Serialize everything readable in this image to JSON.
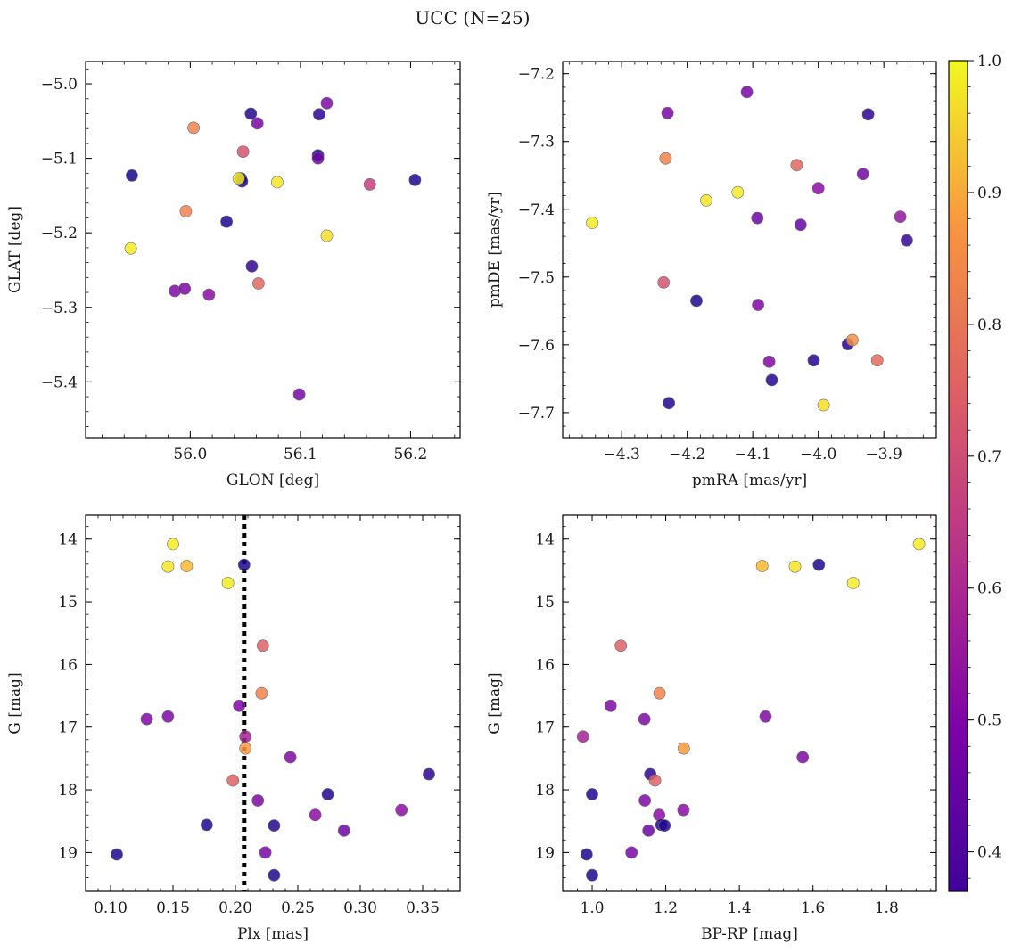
{
  "figure": {
    "title": "UCC (N=25)"
  },
  "colorbar": {
    "colormap": "plasma",
    "range": [
      0.37,
      1.0
    ],
    "ticks": [
      0.4,
      0.5,
      0.6,
      0.7,
      0.8,
      0.9,
      1.0
    ],
    "tick_labels": [
      "0.4",
      "0.5",
      "0.6",
      "0.7",
      "0.8",
      "0.9",
      "1.0"
    ]
  },
  "colors": {
    "marker_edge": "#6e6e6e",
    "vline": "#000000"
  },
  "chart_data": [
    {
      "type": "scatter",
      "xlabel": "GLON [deg]",
      "ylabel": "GLAT [deg]",
      "xlim": [
        55.905,
        56.245
      ],
      "ylim": [
        -5.475,
        -4.97
      ],
      "invert_y": false,
      "xticks": [
        56.0,
        56.1,
        56.2
      ],
      "xtick_labels": [
        "56.0",
        "56.1",
        "56.2"
      ],
      "yticks": [
        -5.0,
        -5.1,
        -5.2,
        -5.3,
        -5.4
      ],
      "ytick_labels": [
        "−5.0",
        "−5.1",
        "−5.2",
        "−5.3",
        "−5.4"
      ],
      "points": [
        {
          "x": 55.947,
          "y": -5.123,
          "c": 0.38
        },
        {
          "x": 55.946,
          "y": -5.221,
          "c": 0.98
        },
        {
          "x": 56.003,
          "y": -5.059,
          "c": 0.81
        },
        {
          "x": 55.996,
          "y": -5.171,
          "c": 0.81
        },
        {
          "x": 55.986,
          "y": -5.278,
          "c": 0.53
        },
        {
          "x": 55.995,
          "y": -5.275,
          "c": 0.53
        },
        {
          "x": 56.017,
          "y": -5.283,
          "c": 0.55
        },
        {
          "x": 56.055,
          "y": -5.04,
          "c": 0.4
        },
        {
          "x": 56.061,
          "y": -5.053,
          "c": 0.52
        },
        {
          "x": 56.048,
          "y": -5.091,
          "c": 0.71
        },
        {
          "x": 56.046,
          "y": -5.127,
          "c": 0.4
        },
        {
          "x": 56.047,
          "y": -5.131,
          "c": 0.4
        },
        {
          "x": 56.044,
          "y": -5.127,
          "c": 0.98
        },
        {
          "x": 56.079,
          "y": -5.132,
          "c": 0.97
        },
        {
          "x": 56.033,
          "y": -5.185,
          "c": 0.39
        },
        {
          "x": 56.056,
          "y": -5.245,
          "c": 0.42
        },
        {
          "x": 56.062,
          "y": -5.268,
          "c": 0.75
        },
        {
          "x": 56.117,
          "y": -5.041,
          "c": 0.41
        },
        {
          "x": 56.124,
          "y": -5.026,
          "c": 0.53
        },
        {
          "x": 56.116,
          "y": -5.096,
          "c": 0.4
        },
        {
          "x": 56.116,
          "y": -5.1,
          "c": 0.5
        },
        {
          "x": 56.124,
          "y": -5.204,
          "c": 0.96
        },
        {
          "x": 56.163,
          "y": -5.135,
          "c": 0.67
        },
        {
          "x": 56.204,
          "y": -5.129,
          "c": 0.39
        },
        {
          "x": 56.099,
          "y": -5.417,
          "c": 0.52
        }
      ]
    },
    {
      "type": "scatter",
      "xlabel": "pmRA [mas/yr]",
      "ylabel": "pmDE [mas/yr]",
      "xlim": [
        -4.39,
        -3.82
      ],
      "ylim": [
        -7.737,
        -7.182
      ],
      "invert_y": false,
      "xticks": [
        -4.3,
        -4.2,
        -4.1,
        -4.0,
        -3.9
      ],
      "xtick_labels": [
        "−4.3",
        "−4.2",
        "−4.1",
        "−4.0",
        "−3.9"
      ],
      "yticks": [
        -7.2,
        -7.3,
        -7.4,
        -7.5,
        -7.6,
        -7.7
      ],
      "ytick_labels": [
        "−7.2",
        "−7.3",
        "−7.4",
        "−7.5",
        "−7.6",
        "−7.7"
      ],
      "points": [
        {
          "x": -4.345,
          "y": -7.42,
          "c": 0.98
        },
        {
          "x": -4.23,
          "y": -7.258,
          "c": 0.52
        },
        {
          "x": -4.233,
          "y": -7.325,
          "c": 0.81
        },
        {
          "x": -4.236,
          "y": -7.508,
          "c": 0.71
        },
        {
          "x": -4.186,
          "y": -7.535,
          "c": 0.39
        },
        {
          "x": -4.171,
          "y": -7.387,
          "c": 0.97
        },
        {
          "x": -4.228,
          "y": -7.686,
          "c": 0.4
        },
        {
          "x": -4.123,
          "y": -7.375,
          "c": 0.98
        },
        {
          "x": -4.109,
          "y": -7.227,
          "c": 0.52
        },
        {
          "x": -4.093,
          "y": -7.413,
          "c": 0.5
        },
        {
          "x": -4.092,
          "y": -7.541,
          "c": 0.53
        },
        {
          "x": -4.075,
          "y": -7.625,
          "c": 0.53
        },
        {
          "x": -4.071,
          "y": -7.652,
          "c": 0.4
        },
        {
          "x": -4.033,
          "y": -7.335,
          "c": 0.75
        },
        {
          "x": -4.027,
          "y": -7.423,
          "c": 0.49
        },
        {
          "x": -4.007,
          "y": -7.623,
          "c": 0.4
        },
        {
          "x": -4.0,
          "y": -7.369,
          "c": 0.55
        },
        {
          "x": -3.992,
          "y": -7.689,
          "c": 0.96
        },
        {
          "x": -3.955,
          "y": -7.599,
          "c": 0.4
        },
        {
          "x": -3.948,
          "y": -7.593,
          "c": 0.83
        },
        {
          "x": -3.932,
          "y": -7.348,
          "c": 0.51
        },
        {
          "x": -3.924,
          "y": -7.26,
          "c": 0.41
        },
        {
          "x": -3.91,
          "y": -7.623,
          "c": 0.76
        },
        {
          "x": -3.875,
          "y": -7.411,
          "c": 0.57
        },
        {
          "x": -3.865,
          "y": -7.446,
          "c": 0.42
        }
      ]
    },
    {
      "type": "scatter",
      "xlabel": "Plx [mas]",
      "ylabel": "G [mag]",
      "xlim": [
        0.08,
        0.38
      ],
      "ylim": [
        13.62,
        19.62
      ],
      "invert_y": true,
      "xticks": [
        0.1,
        0.15,
        0.2,
        0.25,
        0.3,
        0.35
      ],
      "xtick_labels": [
        "0.10",
        "0.15",
        "0.20",
        "0.25",
        "0.30",
        "0.35"
      ],
      "yticks": [
        14,
        15,
        16,
        17,
        18,
        19
      ],
      "ytick_labels": [
        "14",
        "15",
        "16",
        "17",
        "18",
        "19"
      ],
      "vline": {
        "x": 0.207
      },
      "points": [
        {
          "x": 0.15,
          "y": 14.08,
          "c": 0.98
        },
        {
          "x": 0.146,
          "y": 14.44,
          "c": 0.97
        },
        {
          "x": 0.161,
          "y": 14.43,
          "c": 0.9
        },
        {
          "x": 0.194,
          "y": 14.7,
          "c": 0.98
        },
        {
          "x": 0.207,
          "y": 14.41,
          "c": 0.39
        },
        {
          "x": 0.222,
          "y": 15.7,
          "c": 0.74
        },
        {
          "x": 0.221,
          "y": 16.46,
          "c": 0.81
        },
        {
          "x": 0.203,
          "y": 16.66,
          "c": 0.53
        },
        {
          "x": 0.129,
          "y": 16.87,
          "c": 0.53
        },
        {
          "x": 0.146,
          "y": 16.83,
          "c": 0.53
        },
        {
          "x": 0.208,
          "y": 17.15,
          "c": 0.6
        },
        {
          "x": 0.208,
          "y": 17.34,
          "c": 0.85
        },
        {
          "x": 0.244,
          "y": 17.48,
          "c": 0.53
        },
        {
          "x": 0.198,
          "y": 17.85,
          "c": 0.74
        },
        {
          "x": 0.274,
          "y": 18.07,
          "c": 0.4
        },
        {
          "x": 0.218,
          "y": 18.17,
          "c": 0.53
        },
        {
          "x": 0.355,
          "y": 17.75,
          "c": 0.41
        },
        {
          "x": 0.333,
          "y": 18.32,
          "c": 0.55
        },
        {
          "x": 0.264,
          "y": 18.4,
          "c": 0.55
        },
        {
          "x": 0.177,
          "y": 18.56,
          "c": 0.39
        },
        {
          "x": 0.231,
          "y": 18.57,
          "c": 0.4
        },
        {
          "x": 0.287,
          "y": 18.65,
          "c": 0.5
        },
        {
          "x": 0.224,
          "y": 19.0,
          "c": 0.52
        },
        {
          "x": 0.105,
          "y": 19.03,
          "c": 0.39
        },
        {
          "x": 0.231,
          "y": 19.36,
          "c": 0.39
        }
      ]
    },
    {
      "type": "scatter",
      "xlabel": "BP-RP [mag]",
      "ylabel": "G [mag]",
      "xlim": [
        0.92,
        1.935
      ],
      "ylim": [
        13.62,
        19.62
      ],
      "invert_y": true,
      "xticks": [
        1.0,
        1.2,
        1.4,
        1.6,
        1.8
      ],
      "xtick_labels": [
        "1.0",
        "1.2",
        "1.4",
        "1.6",
        "1.8"
      ],
      "yticks": [
        14,
        15,
        16,
        17,
        18,
        19
      ],
      "ytick_labels": [
        "14",
        "15",
        "16",
        "17",
        "18",
        "19"
      ],
      "points": [
        {
          "x": 1.888,
          "y": 14.08,
          "c": 0.98
        },
        {
          "x": 1.462,
          "y": 14.43,
          "c": 0.9
        },
        {
          "x": 1.551,
          "y": 14.44,
          "c": 0.97
        },
        {
          "x": 1.616,
          "y": 14.41,
          "c": 0.39
        },
        {
          "x": 1.709,
          "y": 14.7,
          "c": 0.98
        },
        {
          "x": 1.078,
          "y": 15.7,
          "c": 0.74
        },
        {
          "x": 1.183,
          "y": 16.46,
          "c": 0.81
        },
        {
          "x": 1.05,
          "y": 16.66,
          "c": 0.53
        },
        {
          "x": 1.142,
          "y": 16.87,
          "c": 0.53
        },
        {
          "x": 1.471,
          "y": 16.83,
          "c": 0.53
        },
        {
          "x": 0.975,
          "y": 17.15,
          "c": 0.6
        },
        {
          "x": 1.249,
          "y": 17.34,
          "c": 0.85
        },
        {
          "x": 1.572,
          "y": 17.48,
          "c": 0.53
        },
        {
          "x": 1.158,
          "y": 17.75,
          "c": 0.41
        },
        {
          "x": 1.171,
          "y": 17.85,
          "c": 0.74
        },
        {
          "x": 1.0,
          "y": 18.07,
          "c": 0.4
        },
        {
          "x": 1.143,
          "y": 18.17,
          "c": 0.53
        },
        {
          "x": 1.248,
          "y": 18.32,
          "c": 0.55
        },
        {
          "x": 1.182,
          "y": 18.4,
          "c": 0.55
        },
        {
          "x": 1.188,
          "y": 18.56,
          "c": 0.39
        },
        {
          "x": 1.197,
          "y": 18.57,
          "c": 0.4
        },
        {
          "x": 1.153,
          "y": 18.65,
          "c": 0.5
        },
        {
          "x": 1.107,
          "y": 19.0,
          "c": 0.52
        },
        {
          "x": 0.985,
          "y": 19.03,
          "c": 0.39
        },
        {
          "x": 1.0,
          "y": 19.36,
          "c": 0.39
        }
      ]
    }
  ]
}
